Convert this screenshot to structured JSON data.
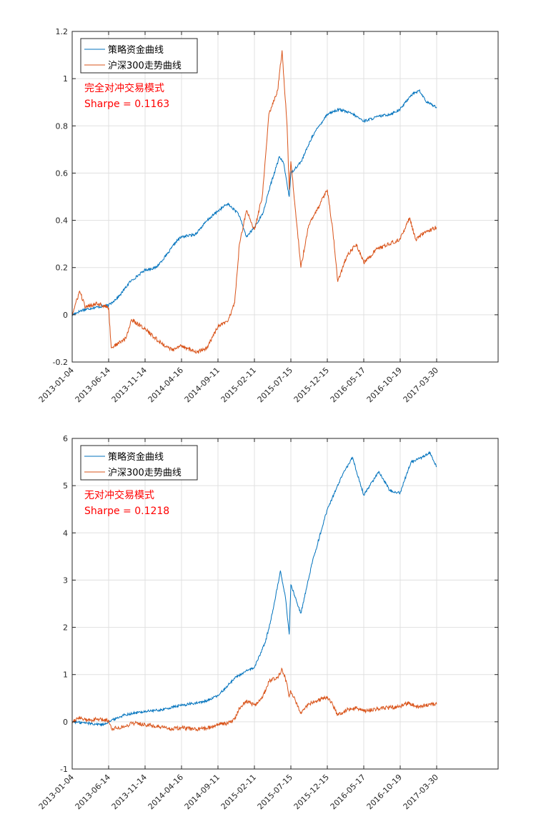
{
  "colors": {
    "strategy": "#0072bd",
    "benchmark": "#d95319",
    "annotation": "#ff0000",
    "grid": "#e0e0e0"
  },
  "chart_data": [
    {
      "type": "line",
      "title": "",
      "xlabel": "",
      "ylabel": "",
      "grid": true,
      "legend_position": "top-left",
      "x_ticks": [
        "2013-01-04",
        "2013-06-14",
        "2013-11-14",
        "2014-04-16",
        "2014-09-11",
        "2015-02-11",
        "2015-07-15",
        "2015-12-15",
        "2016-05-17",
        "2016-10-19",
        "2017-03-30"
      ],
      "ylim": [
        -0.2,
        1.2
      ],
      "y_ticks": [
        "-0.2",
        "0",
        "0.2",
        "0.4",
        "0.6",
        "0.8",
        "1",
        "1.2"
      ],
      "annotations": [
        "完全对冲交易模式",
        "Sharpe = 0.1163"
      ],
      "series": [
        {
          "name": "策略资金曲线",
          "color": "#0072bd",
          "points": [
            [
              "2013-01-04",
              0
            ],
            [
              "2013-02-18",
              0.02
            ],
            [
              "2013-04-08",
              0.03
            ],
            [
              "2013-06-14",
              0.04
            ],
            [
              "2013-07-29",
              0.08
            ],
            [
              "2013-09-12",
              0.14
            ],
            [
              "2013-11-14",
              0.19
            ],
            [
              "2013-12-30",
              0.2
            ],
            [
              "2014-02-18",
              0.26
            ],
            [
              "2014-03-24",
              0.31
            ],
            [
              "2014-04-16",
              0.33
            ],
            [
              "2014-06-10",
              0.34
            ],
            [
              "2014-07-30",
              0.4
            ],
            [
              "2014-09-11",
              0.44
            ],
            [
              "2014-10-21",
              0.47
            ],
            [
              "2014-12-05",
              0.43
            ],
            [
              "2015-01-09",
              0.33
            ],
            [
              "2015-02-11",
              0.37
            ],
            [
              "2015-03-19",
              0.43
            ],
            [
              "2015-04-20",
              0.55
            ],
            [
              "2015-05-28",
              0.67
            ],
            [
              "2015-06-15",
              0.64
            ],
            [
              "2015-07-08",
              0.5
            ],
            [
              "2015-07-15",
              0.6
            ],
            [
              "2015-08-28",
              0.65
            ],
            [
              "2015-10-15",
              0.76
            ],
            [
              "2015-12-15",
              0.85
            ],
            [
              "2016-02-02",
              0.87
            ],
            [
              "2016-04-01",
              0.85
            ],
            [
              "2016-05-17",
              0.82
            ],
            [
              "2016-07-20",
              0.84
            ],
            [
              "2016-09-08",
              0.85
            ],
            [
              "2016-10-19",
              0.87
            ],
            [
              "2016-12-05",
              0.93
            ],
            [
              "2017-01-11",
              0.95
            ],
            [
              "2017-02-14",
              0.9
            ],
            [
              "2017-03-30",
              0.88
            ]
          ]
        },
        {
          "name": "沪深300走势曲线",
          "color": "#d95319",
          "points": [
            [
              "2013-01-04",
              0
            ],
            [
              "2013-02-06",
              0.1
            ],
            [
              "2013-03-04",
              0.03
            ],
            [
              "2013-04-23",
              0.05
            ],
            [
              "2013-06-14",
              0.03
            ],
            [
              "2013-06-25",
              -0.14
            ],
            [
              "2013-08-26",
              -0.1
            ],
            [
              "2013-09-18",
              -0.02
            ],
            [
              "2013-11-14",
              -0.06
            ],
            [
              "2013-12-16",
              -0.09
            ],
            [
              "2014-01-20",
              -0.12
            ],
            [
              "2014-03-10",
              -0.15
            ],
            [
              "2014-04-16",
              -0.13
            ],
            [
              "2014-06-16",
              -0.16
            ],
            [
              "2014-07-28",
              -0.14
            ],
            [
              "2014-09-11",
              -0.05
            ],
            [
              "2014-10-21",
              -0.03
            ],
            [
              "2014-11-20",
              0.05
            ],
            [
              "2014-12-10",
              0.3
            ],
            [
              "2015-01-08",
              0.44
            ],
            [
              "2015-02-11",
              0.36
            ],
            [
              "2015-03-16",
              0.5
            ],
            [
              "2015-04-13",
              0.85
            ],
            [
              "2015-05-20",
              0.95
            ],
            [
              "2015-06-08",
              1.12
            ],
            [
              "2015-06-29",
              0.8
            ],
            [
              "2015-07-08",
              0.53
            ],
            [
              "2015-07-15",
              0.65
            ],
            [
              "2015-08-26",
              0.2
            ],
            [
              "2015-09-28",
              0.38
            ],
            [
              "2015-11-06",
              0.45
            ],
            [
              "2015-12-15",
              0.53
            ],
            [
              "2016-01-08",
              0.35
            ],
            [
              "2016-01-28",
              0.14
            ],
            [
              "2016-03-07",
              0.25
            ],
            [
              "2016-04-15",
              0.3
            ],
            [
              "2016-05-17",
              0.22
            ],
            [
              "2016-07-14",
              0.28
            ],
            [
              "2016-09-05",
              0.3
            ],
            [
              "2016-10-19",
              0.32
            ],
            [
              "2016-11-29",
              0.41
            ],
            [
              "2016-12-27",
              0.32
            ],
            [
              "2017-02-07",
              0.35
            ],
            [
              "2017-03-30",
              0.37
            ]
          ]
        }
      ]
    },
    {
      "type": "line",
      "title": "",
      "xlabel": "",
      "ylabel": "",
      "grid": true,
      "legend_position": "top-left",
      "x_ticks": [
        "2013-01-04",
        "2013-06-14",
        "2013-11-14",
        "2014-04-16",
        "2014-09-11",
        "2015-02-11",
        "2015-07-15",
        "2015-12-15",
        "2016-05-17",
        "2016-10-19",
        "2017-03-30"
      ],
      "ylim": [
        -1,
        6
      ],
      "y_ticks": [
        "-1",
        "0",
        "1",
        "2",
        "3",
        "4",
        "5",
        "6"
      ],
      "annotations": [
        "无对冲交易模式",
        "Sharpe = 0.1218"
      ],
      "series": [
        {
          "name": "策略资金曲线",
          "color": "#0072bd",
          "points": [
            [
              "2013-01-04",
              0
            ],
            [
              "2013-03-15",
              -0.03
            ],
            [
              "2013-05-20",
              -0.06
            ],
            [
              "2013-06-14",
              0
            ],
            [
              "2013-08-20",
              0.15
            ],
            [
              "2013-11-14",
              0.22
            ],
            [
              "2014-01-20",
              0.25
            ],
            [
              "2014-04-16",
              0.35
            ],
            [
              "2014-07-14",
              0.42
            ],
            [
              "2014-09-11",
              0.55
            ],
            [
              "2014-11-25",
              0.95
            ],
            [
              "2015-01-20",
              1.1
            ],
            [
              "2015-02-11",
              1.15
            ],
            [
              "2015-03-30",
              1.7
            ],
            [
              "2015-04-28",
              2.3
            ],
            [
              "2015-06-01",
              3.2
            ],
            [
              "2015-06-23",
              2.6
            ],
            [
              "2015-07-08",
              1.85
            ],
            [
              "2015-07-15",
              2.9
            ],
            [
              "2015-08-26",
              2.3
            ],
            [
              "2015-10-14",
              3.4
            ],
            [
              "2015-12-15",
              4.5
            ],
            [
              "2016-02-15",
              5.2
            ],
            [
              "2016-03-30",
              5.6
            ],
            [
              "2016-05-17",
              4.8
            ],
            [
              "2016-07-20",
              5.3
            ],
            [
              "2016-09-05",
              4.9
            ],
            [
              "2016-10-19",
              4.85
            ],
            [
              "2016-12-06",
              5.5
            ],
            [
              "2017-01-23",
              5.6
            ],
            [
              "2017-03-01",
              5.7
            ],
            [
              "2017-03-30",
              5.4
            ]
          ]
        },
        {
          "name": "沪深300走势曲线",
          "color": "#d95319",
          "points": [
            [
              "2013-01-04",
              0
            ],
            [
              "2013-02-06",
              0.1
            ],
            [
              "2013-03-04",
              0.03
            ],
            [
              "2013-04-23",
              0.05
            ],
            [
              "2013-06-14",
              0.03
            ],
            [
              "2013-06-25",
              -0.14
            ],
            [
              "2013-08-26",
              -0.1
            ],
            [
              "2013-09-18",
              -0.02
            ],
            [
              "2013-11-14",
              -0.06
            ],
            [
              "2013-12-16",
              -0.09
            ],
            [
              "2014-01-20",
              -0.12
            ],
            [
              "2014-03-10",
              -0.15
            ],
            [
              "2014-04-16",
              -0.13
            ],
            [
              "2014-06-16",
              -0.16
            ],
            [
              "2014-07-28",
              -0.14
            ],
            [
              "2014-09-11",
              -0.05
            ],
            [
              "2014-10-21",
              -0.03
            ],
            [
              "2014-11-20",
              0.05
            ],
            [
              "2014-12-10",
              0.3
            ],
            [
              "2015-01-08",
              0.44
            ],
            [
              "2015-02-11",
              0.36
            ],
            [
              "2015-03-16",
              0.5
            ],
            [
              "2015-04-13",
              0.85
            ],
            [
              "2015-05-20",
              0.95
            ],
            [
              "2015-06-08",
              1.12
            ],
            [
              "2015-06-29",
              0.8
            ],
            [
              "2015-07-08",
              0.53
            ],
            [
              "2015-07-15",
              0.65
            ],
            [
              "2015-08-26",
              0.2
            ],
            [
              "2015-09-28",
              0.38
            ],
            [
              "2015-11-06",
              0.45
            ],
            [
              "2015-12-15",
              0.53
            ],
            [
              "2016-01-08",
              0.35
            ],
            [
              "2016-01-28",
              0.14
            ],
            [
              "2016-03-07",
              0.25
            ],
            [
              "2016-04-15",
              0.3
            ],
            [
              "2016-05-17",
              0.22
            ],
            [
              "2016-07-14",
              0.28
            ],
            [
              "2016-09-05",
              0.3
            ],
            [
              "2016-10-19",
              0.32
            ],
            [
              "2016-11-29",
              0.41
            ],
            [
              "2016-12-27",
              0.32
            ],
            [
              "2017-02-07",
              0.35
            ],
            [
              "2017-03-30",
              0.37
            ]
          ]
        }
      ]
    }
  ]
}
